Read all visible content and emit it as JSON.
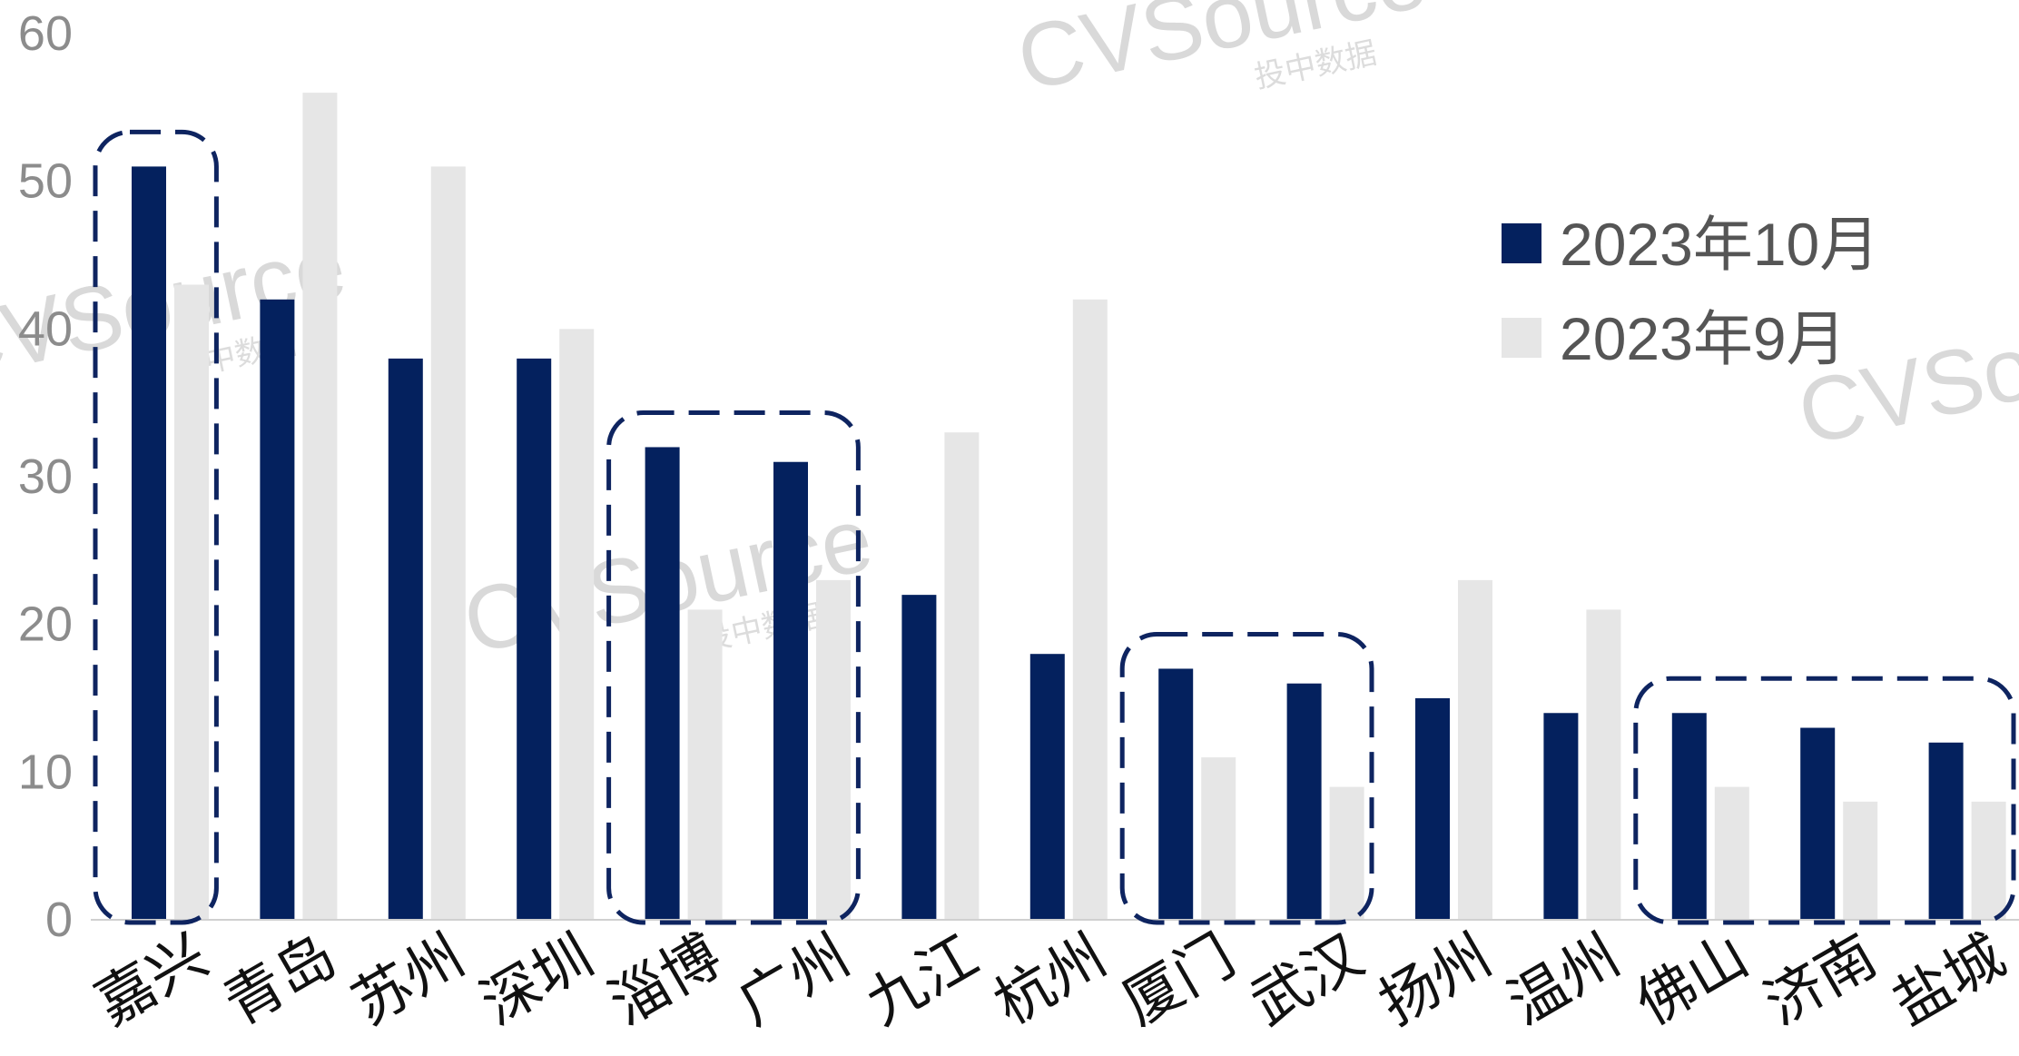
{
  "watermark": {
    "brand": "CVSource",
    "sub": "投中数据"
  },
  "colors": {
    "series_a": "#04215e",
    "series_b": "#e6e6e6",
    "highlight": "#0e2460"
  },
  "chart_data": {
    "type": "bar",
    "categories": [
      "嘉兴",
      "青岛",
      "苏州",
      "深圳",
      "淄博",
      "广州",
      "九江",
      "杭州",
      "厦门",
      "武汉",
      "扬州",
      "温州",
      "佛山",
      "济南",
      "盐城"
    ],
    "series": [
      {
        "name": "2023年10月",
        "values": [
          51,
          42,
          38,
          38,
          32,
          31,
          22,
          18,
          17,
          16,
          15,
          14,
          14,
          13,
          12
        ]
      },
      {
        "name": "2023年9月",
        "values": [
          43,
          56,
          51,
          40,
          21,
          23,
          33,
          42,
          11,
          9,
          23,
          21,
          9,
          8,
          8
        ]
      }
    ],
    "ylim": [
      0,
      60
    ],
    "yticks": [
      "0",
      "10",
      "20",
      "30",
      "40",
      "50",
      "60"
    ],
    "grid": false,
    "legend_position": "top-right",
    "highlight_groups": [
      [
        0,
        0
      ],
      [
        4,
        5
      ],
      [
        8,
        9
      ],
      [
        12,
        14
      ]
    ]
  }
}
